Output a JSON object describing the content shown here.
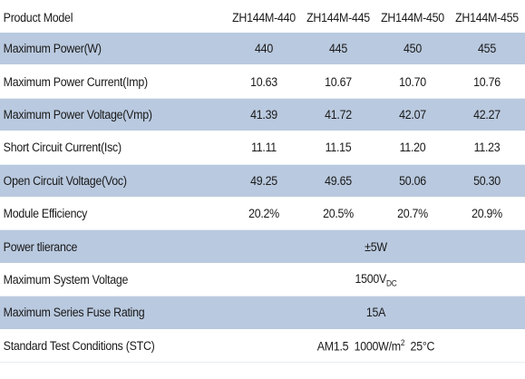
{
  "header": {
    "label": "Product Model",
    "models": [
      "ZH144M-440",
      "ZH144M-445",
      "ZH144M-450",
      "ZH144M-455"
    ]
  },
  "rows": [
    {
      "label": "Maximum Power(W)",
      "values": [
        "440",
        "445",
        "450",
        "455"
      ]
    },
    {
      "label": "Maximum Power Current(Imp)",
      "values": [
        "10.63",
        "10.67",
        "10.70",
        "10.76"
      ]
    },
    {
      "label": "Maximum Power Voltage(Vmp)",
      "values": [
        "41.39",
        "41.72",
        "42.07",
        "42.27"
      ]
    },
    {
      "label": "Short Circuit Current(Isc)",
      "values": [
        "11.11",
        "11.15",
        "11.20",
        "11.23"
      ]
    },
    {
      "label": "Open Circuit Voltage(Voc)",
      "values": [
        "49.25",
        "49.65",
        "50.06",
        "50.30"
      ]
    },
    {
      "label": "Module Efficiency",
      "values": [
        "20.2%",
        "20.5%",
        "20.7%",
        "20.9%"
      ]
    }
  ],
  "span_rows": [
    {
      "label": "Power tlierance",
      "value": "±5W"
    },
    {
      "label": "Maximum System Voltage",
      "value": "1500V",
      "sub": "DC"
    },
    {
      "label": "Maximum Series Fuse Rating",
      "value": "15A"
    },
    {
      "label": "Standard Test Conditions (STC)",
      "value_a": "AM1.5  1000W/m",
      "sup": "2",
      "value_b": "  25°C"
    }
  ],
  "colors": {
    "band_blue": "#b9c9df",
    "text": "#1a1a1a"
  }
}
